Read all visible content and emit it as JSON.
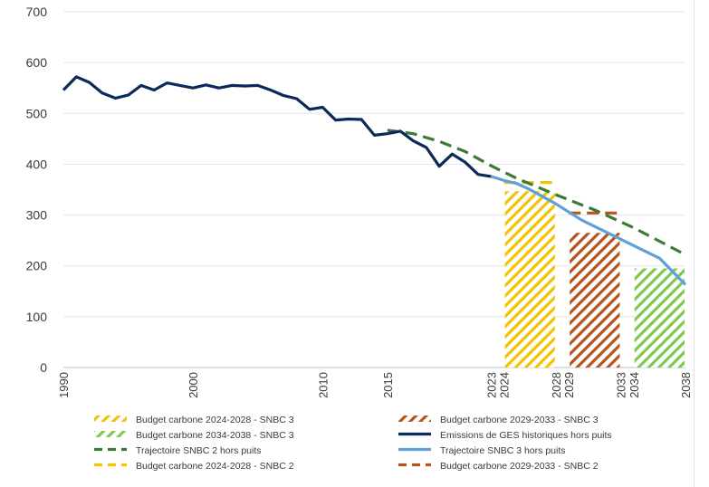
{
  "chart_data": {
    "type": "line",
    "title": "",
    "xlabel": "",
    "ylabel": "",
    "ylim": [
      0,
      700
    ],
    "yticks": [
      0,
      100,
      200,
      300,
      400,
      500,
      600,
      700
    ],
    "xlim": [
      1990,
      2038
    ],
    "xtick_labels": [
      "1990",
      "2000",
      "2010",
      "2015",
      "2023",
      "2024",
      "2028",
      "2029",
      "2033",
      "2034",
      "2038"
    ],
    "xtick_values": [
      1990,
      2000,
      2010,
      2015,
      2023,
      2024,
      2028,
      2029,
      2033,
      2034,
      2038
    ],
    "grid": "horizontal",
    "legend_position": "bottom",
    "series": [
      {
        "name": "Emissions de GES historiques hors puits",
        "color": "#0b2a5b",
        "style": "solid",
        "x": [
          1990,
          1991,
          1992,
          1993,
          1994,
          1995,
          1996,
          1997,
          1998,
          1999,
          2000,
          2001,
          2002,
          2003,
          2004,
          2005,
          2006,
          2007,
          2008,
          2009,
          2010,
          2011,
          2012,
          2013,
          2014,
          2015,
          2016,
          2017,
          2018,
          2019,
          2020,
          2021,
          2022,
          2023
        ],
        "y": [
          546,
          572,
          561,
          540,
          530,
          536,
          555,
          546,
          560,
          555,
          550,
          556,
          550,
          555,
          554,
          555,
          546,
          535,
          529,
          508,
          512,
          487,
          489,
          488,
          457,
          460,
          465,
          446,
          433,
          396,
          420,
          404,
          380,
          376
        ]
      },
      {
        "name": "Trajectoire SNBC 2 hors puits",
        "color": "#3c7a35",
        "style": "dashed",
        "x": [
          2015,
          2017,
          2019,
          2021,
          2023,
          2025,
          2028,
          2031,
          2034,
          2038
        ],
        "y": [
          467,
          460,
          445,
          425,
          397,
          372,
          340,
          310,
          275,
          222
        ]
      },
      {
        "name": "Trajectoire SNBC 3 hors puits",
        "color": "#5fa0d8",
        "style": "solid",
        "x": [
          2023,
          2024,
          2025,
          2026,
          2028,
          2030,
          2032,
          2034,
          2036,
          2038
        ],
        "y": [
          376,
          368,
          362,
          350,
          322,
          290,
          265,
          240,
          215,
          163
        ]
      },
      {
        "name": "Budget carbone 2024-2028 - SNBC 2",
        "color": "#f2c300",
        "style": "dashed",
        "x": [
          2024,
          2028
        ],
        "y": [
          364,
          364
        ]
      },
      {
        "name": "Budget carbone 2029-2033 - SNBC 2",
        "color": "#b5541c",
        "style": "dashed",
        "x": [
          2029,
          2033
        ],
        "y": [
          304,
          304
        ]
      }
    ],
    "bars": [
      {
        "name": "Budget carbone 2024-2028 - SNBC 3",
        "x0": 2024,
        "x1": 2028,
        "value": 347,
        "color": "#f2c300"
      },
      {
        "name": "Budget carbone 2029-2033 - SNBC 3",
        "x0": 2029,
        "x1": 2033,
        "value": 265,
        "color": "#b5541c"
      },
      {
        "name": "Budget carbone 2034-2038 - SNBC 3",
        "x0": 2034,
        "x1": 2038,
        "value": 195,
        "color": "#7ec850"
      }
    ],
    "legend": [
      {
        "label": "Budget carbone 2024-2028 - SNBC 3",
        "kind": "hatch",
        "color": "#f2c300"
      },
      {
        "label": "Budget carbone 2029-2033 - SNBC 3",
        "kind": "hatch",
        "color": "#b5541c"
      },
      {
        "label": "Budget carbone 2034-2038 - SNBC 3",
        "kind": "hatch",
        "color": "#7ec850"
      },
      {
        "label": "Emissions de GES historiques hors puits",
        "kind": "solid",
        "color": "#0b2a5b"
      },
      {
        "label": "Trajectoire SNBC 2 hors puits",
        "kind": "dashed",
        "color": "#3c7a35"
      },
      {
        "label": "Trajectoire SNBC 3 hors puits",
        "kind": "solid",
        "color": "#5fa0d8"
      },
      {
        "label": "Budget carbone 2024-2028 - SNBC 2",
        "kind": "dashed",
        "color": "#f2c300"
      },
      {
        "label": "Budget carbone 2029-2033 - SNBC 2",
        "kind": "dashed",
        "color": "#b5541c"
      }
    ]
  }
}
